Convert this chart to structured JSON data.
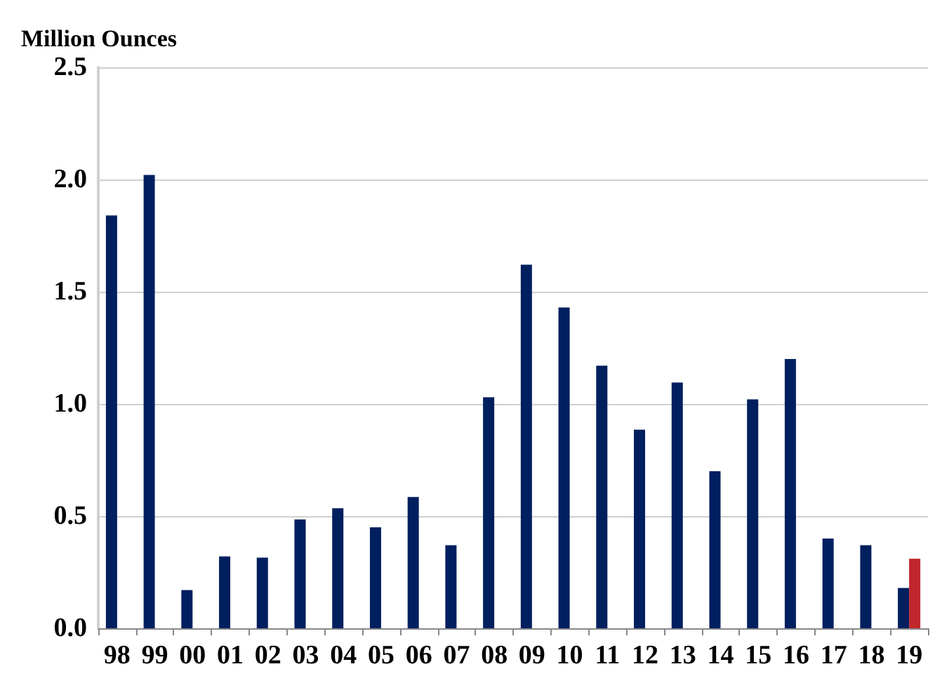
{
  "chart_data": {
    "type": "bar",
    "ylabel": "Million Ounces",
    "categories": [
      "98",
      "99",
      "00",
      "01",
      "02",
      "03",
      "04",
      "05",
      "06",
      "07",
      "08",
      "09",
      "10",
      "11",
      "12",
      "13",
      "14",
      "15",
      "16",
      "17",
      "18",
      "19"
    ],
    "series": [
      {
        "color": "#001f5f",
        "values": [
          1.84,
          2.02,
          0.17,
          0.32,
          0.315,
          0.485,
          0.535,
          0.45,
          0.585,
          0.37,
          1.03,
          1.62,
          1.43,
          1.17,
          0.885,
          1.095,
          0.7,
          1.02,
          1.2,
          0.4,
          0.37,
          0.18
        ]
      },
      {
        "color": "#c0272d",
        "values": [
          null,
          null,
          null,
          null,
          null,
          null,
          null,
          null,
          null,
          null,
          null,
          null,
          null,
          null,
          null,
          null,
          null,
          null,
          null,
          null,
          null,
          0.31
        ]
      }
    ],
    "ylim": [
      0,
      2.5
    ],
    "yticks": [
      {
        "value": 0,
        "label": "0.0"
      },
      0.5,
      {
        "value": 1,
        "label": "1.0"
      },
      1.5,
      {
        "value": 2,
        "label": "2.0"
      },
      2.5
    ],
    "grid": "y"
  }
}
